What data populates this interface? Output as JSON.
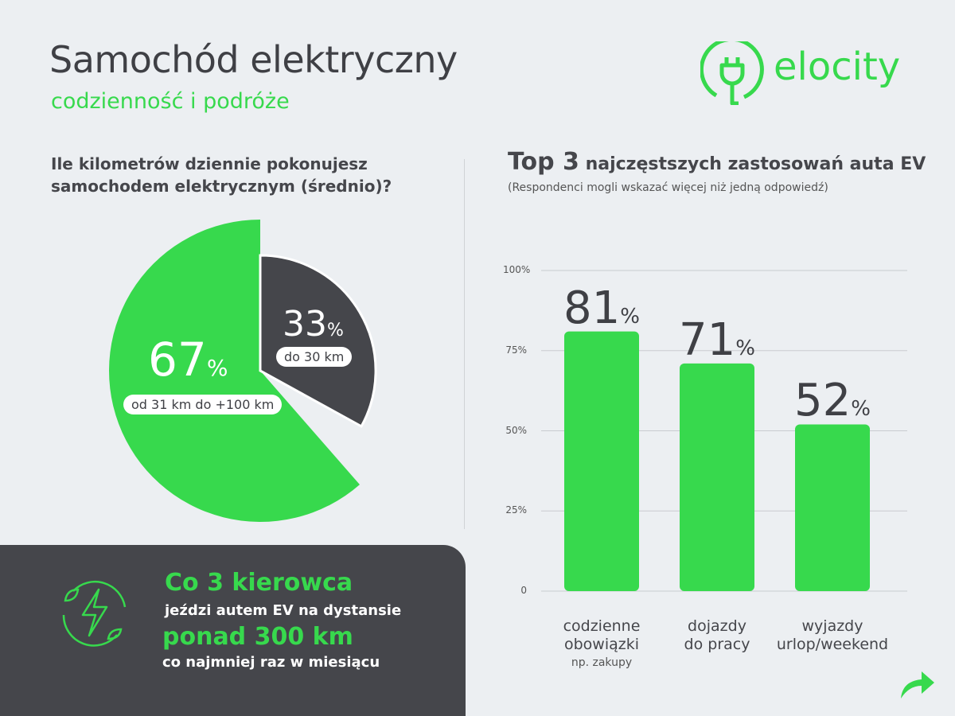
{
  "header": {
    "title": "Samochód elektryczny",
    "subtitle": "codzienność i podróże",
    "logo_text": "elocity"
  },
  "colors": {
    "green": "#37d94d",
    "dark": "#45464b",
    "background": "#eceff2"
  },
  "chart_data": [
    {
      "type": "pie",
      "title": "Ile kilometrów dziennie pokonujesz samochodem elektrycznym (średnio)?",
      "slices": [
        {
          "label": "do 30 km",
          "value": 33,
          "value_label": "33",
          "unit": "%",
          "color": "#45464b"
        },
        {
          "label": "od 31 km do +100 km",
          "value": 67,
          "value_label": "67",
          "unit": "%",
          "color": "#37d94d"
        }
      ]
    },
    {
      "type": "bar",
      "title_bold": "Top 3",
      "title_rest": "najczęstszych zastosowań auta EV",
      "subtitle": "(Respondenci mogli wskazać więcej niż jedną odpowiedź)",
      "categories": [
        {
          "line1": "codzienne",
          "line2": "obowiązki",
          "note": "np. zakupy"
        },
        {
          "line1": "dojazdy",
          "line2": "do pracy",
          "note": ""
        },
        {
          "line1": "wyjazdy",
          "line2": "urlop/weekend",
          "note": ""
        }
      ],
      "values": [
        81,
        71,
        52
      ],
      "value_labels": [
        "81",
        "71",
        "52"
      ],
      "unit": "%",
      "yticks": [
        "0",
        "25%",
        "50%",
        "75%",
        "100%"
      ],
      "ylim": [
        0,
        100
      ],
      "grid": true
    }
  ],
  "panel": {
    "line1": "Co 3 kierowca",
    "line2": "jeździ autem EV na dystansie",
    "line3": "ponad 300 km",
    "line4": "co najmniej raz w miesiącu",
    "icon": "lightning-leaves-icon"
  },
  "footer": {
    "icon": "share-arrow-icon"
  }
}
